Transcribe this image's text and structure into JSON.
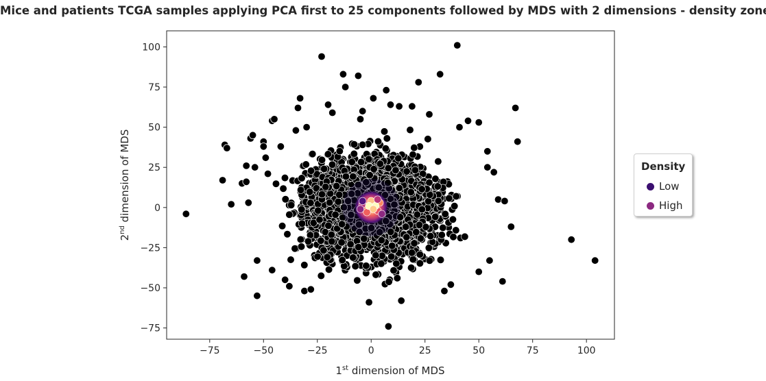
{
  "chart_data": {
    "type": "scatter",
    "title": "Mice and patients TCGA samples applying PCA first to 25 components followed by MDS with 2 dimensions - density zones",
    "xlabel_pre": "1",
    "xlabel_sup": "st",
    "xlabel_post": " dimension of MDS",
    "ylabel_pre": "2",
    "ylabel_sup": "nd",
    "ylabel_post": " dimension of MDS",
    "xlim": [
      -95,
      113
    ],
    "ylim": [
      -82,
      110
    ],
    "x_ticks": [
      -75,
      -50,
      -25,
      0,
      25,
      50,
      75,
      100
    ],
    "x_tick_labels": [
      "−75",
      "−50",
      "−25",
      "0",
      "25",
      "50",
      "75",
      "100"
    ],
    "y_ticks": [
      -75,
      -50,
      -25,
      0,
      25,
      50,
      75,
      100
    ],
    "y_tick_labels": [
      "−75",
      "−50",
      "−25",
      "0",
      "25",
      "50",
      "75",
      "100"
    ],
    "grid": false,
    "legend": {
      "title": "Density",
      "placement": "right-outside",
      "entries": [
        {
          "label": "Low",
          "color": "#3b0f70"
        },
        {
          "label": "High",
          "color": "#8c2981"
        }
      ]
    },
    "series": [
      {
        "points": [
          [
            -86,
            -4
          ],
          [
            -69,
            17
          ],
          [
            -68,
            39
          ],
          [
            -67,
            37
          ],
          [
            -65,
            2
          ],
          [
            -60,
            15
          ],
          [
            -59,
            -43
          ],
          [
            -58,
            26
          ],
          [
            -58,
            16
          ],
          [
            -57,
            3
          ],
          [
            -56,
            43
          ],
          [
            -55,
            45
          ],
          [
            -54,
            25
          ],
          [
            -53,
            -55
          ],
          [
            -53,
            -33
          ],
          [
            -50,
            41
          ],
          [
            -50,
            38
          ],
          [
            -49,
            31
          ],
          [
            -48,
            21
          ],
          [
            -46,
            54
          ],
          [
            -45,
            55
          ],
          [
            -46,
            -39
          ],
          [
            -42,
            38
          ],
          [
            -40,
            -45
          ],
          [
            -38,
            -49
          ],
          [
            -35,
            48
          ],
          [
            -34,
            62
          ],
          [
            -33,
            68
          ],
          [
            -31,
            -52
          ],
          [
            -30,
            50
          ],
          [
            -28,
            -51
          ],
          [
            -23,
            94
          ],
          [
            -20,
            64
          ],
          [
            -18,
            59
          ],
          [
            -13,
            83
          ],
          [
            -12,
            75
          ],
          [
            -6,
            82
          ],
          [
            -5,
            55
          ],
          [
            -4,
            60
          ],
          [
            -1,
            -59
          ],
          [
            1,
            68
          ],
          [
            7,
            73
          ],
          [
            8,
            -74
          ],
          [
            9,
            64
          ],
          [
            13,
            63
          ],
          [
            14,
            -58
          ],
          [
            19,
            63
          ],
          [
            22,
            78
          ],
          [
            27,
            58
          ],
          [
            32,
            83
          ],
          [
            34,
            -52
          ],
          [
            37,
            -48
          ],
          [
            40,
            101
          ],
          [
            41,
            50
          ],
          [
            45,
            54
          ],
          [
            50,
            53
          ],
          [
            50,
            -40
          ],
          [
            54,
            35
          ],
          [
            54,
            25
          ],
          [
            55,
            -33
          ],
          [
            57,
            22
          ],
          [
            59,
            5
          ],
          [
            61,
            -46
          ],
          [
            62,
            4
          ],
          [
            65,
            -12
          ],
          [
            67,
            62
          ],
          [
            68,
            41
          ],
          [
            93,
            -20
          ],
          [
            104,
            -33
          ]
        ]
      }
    ],
    "density_zone": {
      "center": [
        0,
        0
      ],
      "colormap": "magma"
    }
  }
}
